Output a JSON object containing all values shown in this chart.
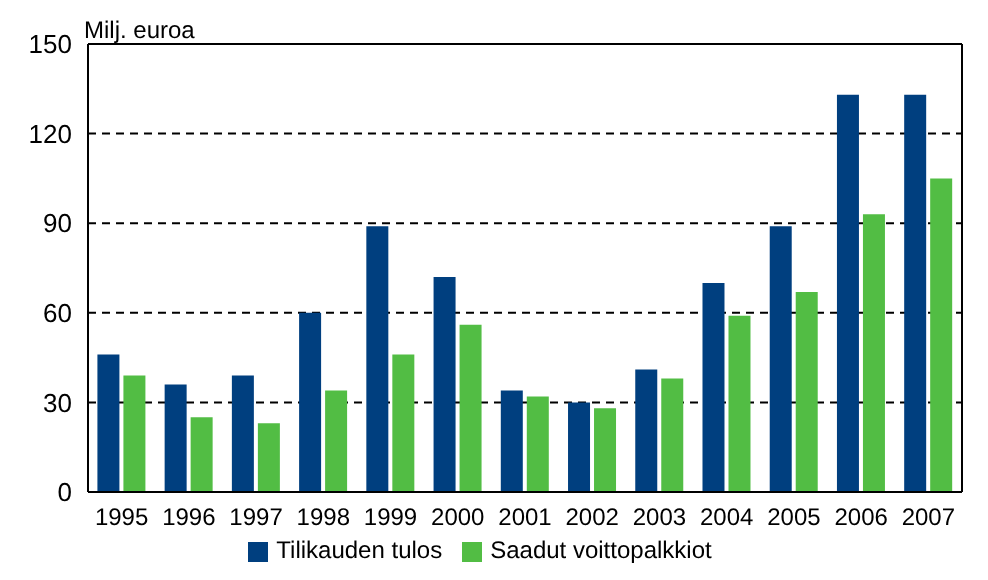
{
  "chart_data": {
    "type": "bar",
    "ylabel": "Milj. euroa",
    "categories": [
      "1995",
      "1996",
      "1997",
      "1998",
      "1999",
      "2000",
      "2001",
      "2002",
      "2003",
      "2004",
      "2005",
      "2006",
      "2007"
    ],
    "series": [
      {
        "name": "Tilikauden tulos",
        "color": "#003f7f",
        "values": [
          46,
          36,
          39,
          60,
          89,
          72,
          34,
          30,
          41,
          70,
          89,
          133,
          133
        ]
      },
      {
        "name": "Saadut voittopalkkiot",
        "color": "#52bd44",
        "values": [
          39,
          25,
          23,
          34,
          46,
          56,
          32,
          28,
          38,
          59,
          67,
          93,
          105
        ]
      }
    ],
    "ylim": [
      0,
      150
    ],
    "yticks": [
      0,
      30,
      60,
      90,
      120,
      150
    ],
    "grid": "y",
    "legend": "bottom"
  }
}
